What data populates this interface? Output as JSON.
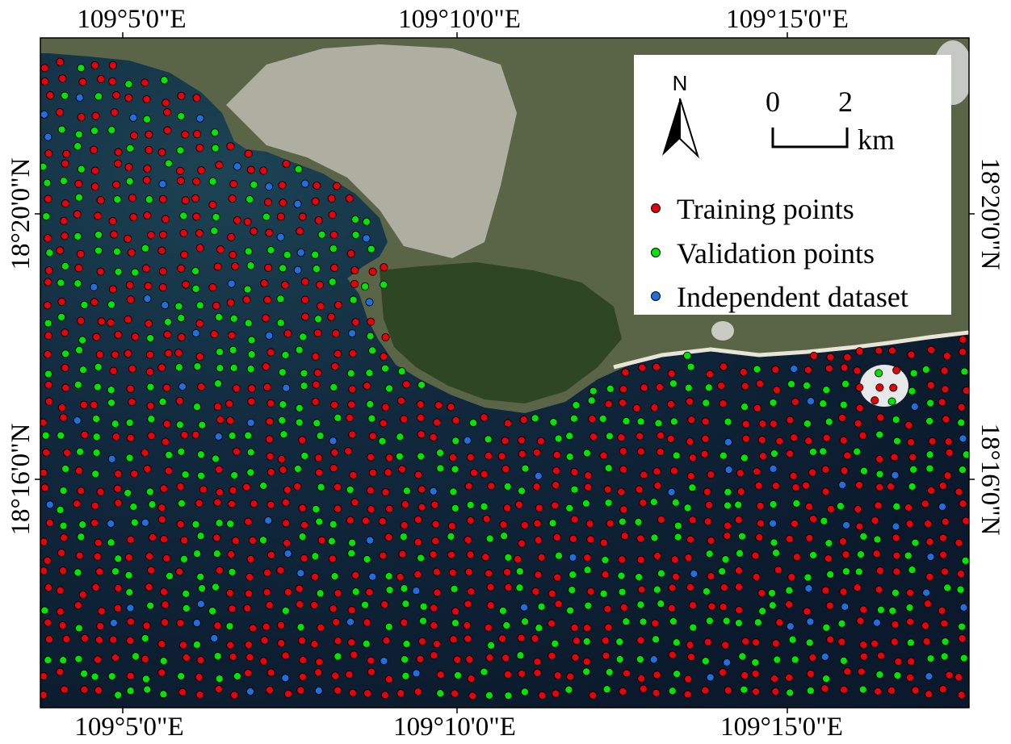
{
  "map": {
    "top_labels": [
      "109°5'0\"E",
      "109°10'0\"E",
      "109°15'0\"E"
    ],
    "bottom_labels": [
      "109°5'0\"E",
      "109°10'0\"E",
      "109°15'0\"E"
    ],
    "left_labels": [
      "18°20'0\"N",
      "18°16'0\"N"
    ],
    "right_labels": [
      "18°20'0\"N",
      "18°16'0\"N"
    ]
  },
  "north_arrow": {
    "label": "N"
  },
  "scale_bar": {
    "start": "0",
    "end": "2",
    "unit": "km"
  },
  "legend": [
    {
      "label": "Training points",
      "color": "#e8000b"
    },
    {
      "label": "Validation points",
      "color": "#00e600"
    },
    {
      "label": "Independent dataset",
      "color": "#1f6fe0"
    }
  ],
  "colors": {
    "sea": "#0d2236",
    "land": "#4a5a3a",
    "forest": "#2f4a24",
    "urban": "#c9c7bf",
    "coast": "#e6e2d6"
  }
}
